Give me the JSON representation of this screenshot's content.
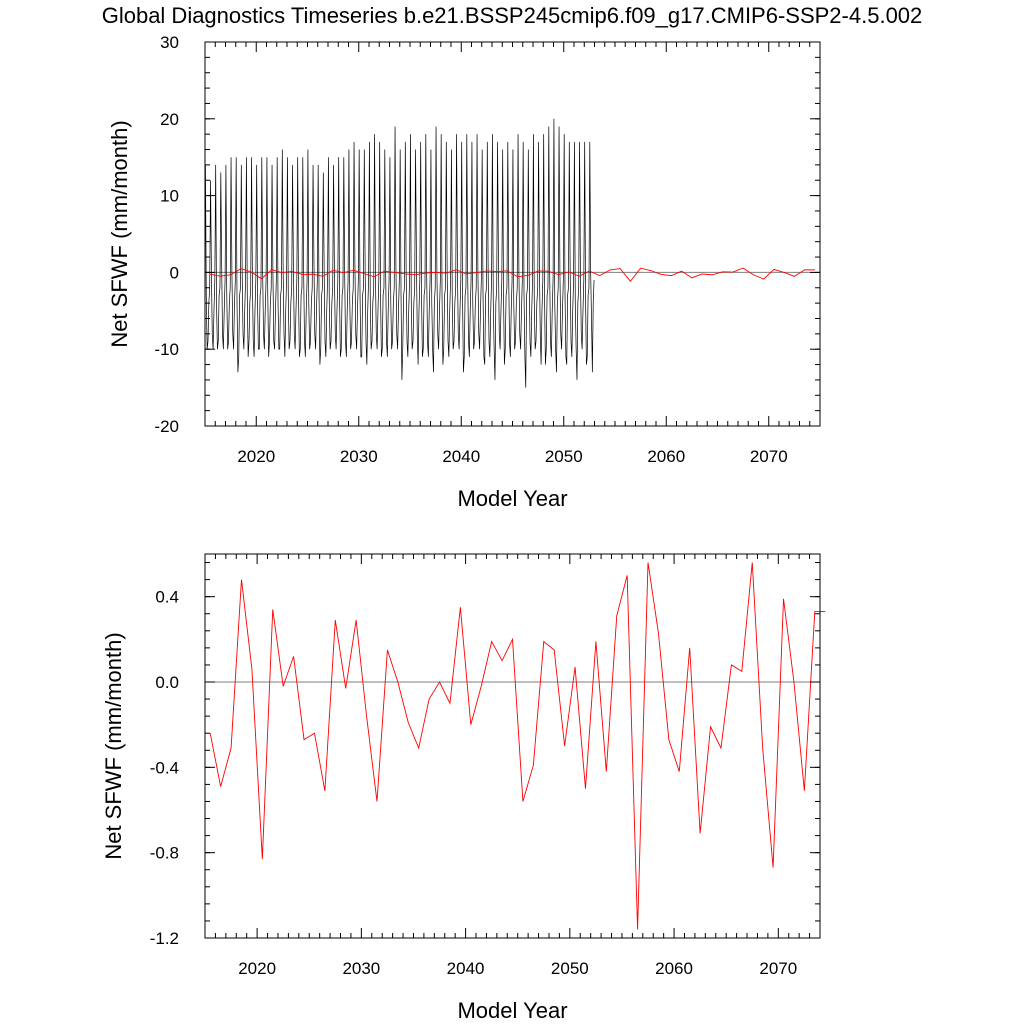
{
  "figure": {
    "title": "Global Diagnostics Timeseries b.e21.BSSP245cmip6.f09_g17.CMIP6-SSP2-4.5.002"
  },
  "chart_data": [
    {
      "type": "line",
      "xlabel": "Model Year",
      "ylabel": "Net SFWF (mm/month)",
      "xlim": [
        2015,
        2075
      ],
      "ylim": [
        -20,
        30
      ],
      "x_ticks": [
        2020,
        2030,
        2040,
        2050,
        2060,
        2070
      ],
      "y_ticks": [
        -20,
        -10,
        0,
        10,
        20,
        30
      ],
      "y_tick_labels": [
        "-20",
        "-10",
        "0",
        "10",
        "20",
        "30"
      ],
      "zero_line": 0,
      "series": [
        {
          "kind": "monthly",
          "color": "#000000",
          "start_year": 2015,
          "monthly_values": [
            14,
            -3,
            -10,
            -9,
            -4,
            -2,
            12,
            0,
            -8,
            -10,
            -5,
            -1,
            14,
            -4,
            -10,
            -9,
            -3,
            -2,
            13,
            1,
            -8,
            -10,
            -5,
            -1,
            14,
            -3,
            -10,
            -9,
            -4,
            -2,
            15,
            0,
            -8,
            -10,
            -4,
            -1,
            15,
            -4,
            -13,
            -11,
            -3,
            -2,
            14,
            0,
            -8,
            -10,
            -5,
            -1,
            15,
            -3,
            -11,
            -9,
            -4,
            -2,
            15,
            -1,
            -9,
            -11,
            -5,
            -1,
            14,
            -4,
            -10,
            -10,
            -3,
            -2,
            15,
            0,
            -8,
            -10,
            -5,
            -1,
            15,
            -3,
            -11,
            -9,
            -4,
            -2,
            14,
            0,
            -9,
            -10,
            -5,
            -1,
            15,
            -4,
            -10,
            -10,
            -3,
            -2,
            16,
            0,
            -8,
            -11,
            -5,
            -1,
            15,
            -3,
            -10,
            -9,
            -4,
            -2,
            14,
            1,
            -8,
            -10,
            -5,
            -1,
            15,
            -3,
            -11,
            -10,
            -3,
            -2,
            15,
            0,
            -9,
            -11,
            -5,
            -1,
            16,
            -4,
            -10,
            -9,
            -4,
            -2,
            14,
            2,
            -8,
            -10,
            -5,
            -1,
            14,
            -3,
            -12,
            -10,
            -3,
            -2,
            13,
            0,
            -9,
            -11,
            -5,
            -1,
            15,
            -4,
            -10,
            -9,
            -4,
            -2,
            14,
            0,
            -8,
            -10,
            -5,
            -1,
            15,
            -3,
            -11,
            -10,
            -3,
            -2,
            15,
            0,
            -9,
            -11,
            -5,
            -1,
            16,
            -4,
            -10,
            -9,
            -4,
            -2,
            17,
            1,
            -8,
            -10,
            -5,
            -1,
            16,
            -3,
            -11,
            -11,
            -3,
            -2,
            16,
            0,
            -9,
            -12,
            -5,
            -1,
            17,
            -4,
            -10,
            -9,
            -4,
            -2,
            18,
            0,
            -8,
            -10,
            -5,
            -1,
            17,
            -3,
            -11,
            -10,
            -3,
            -2,
            16,
            0,
            -9,
            -11,
            -5,
            -1,
            15,
            -4,
            -10,
            -9,
            -4,
            -2,
            19,
            1,
            -8,
            -10,
            -5,
            -1,
            16,
            -3,
            -14,
            -10,
            -3,
            -2,
            17,
            0,
            -9,
            -11,
            -5,
            -1,
            18,
            -4,
            -10,
            -9,
            -4,
            -2,
            16,
            2,
            -8,
            -12,
            -5,
            -1,
            17,
            -3,
            -11,
            -10,
            -3,
            -2,
            18,
            0,
            -9,
            -11,
            -5,
            -1,
            16,
            -4,
            -10,
            -13,
            -4,
            -2,
            19,
            0,
            -8,
            -10,
            -5,
            -1,
            18,
            -3,
            -12,
            -10,
            -3,
            -2,
            17,
            0,
            -9,
            -11,
            -5,
            -1,
            16,
            -4,
            -10,
            -9,
            -4,
            -2,
            18,
            1,
            -8,
            -10,
            -5,
            -1,
            17,
            -3,
            -13,
            -11,
            -3,
            -2,
            18,
            0,
            -9,
            -11,
            -5,
            -1,
            17,
            -4,
            -10,
            -9,
            -4,
            -2,
            18,
            0,
            -8,
            -10,
            -5,
            -1,
            16,
            -3,
            -11,
            -12,
            -3,
            -2,
            17,
            0,
            -9,
            -11,
            -5,
            -1,
            18,
            -4,
            -10,
            -14,
            -4,
            -2,
            17,
            2,
            -8,
            -10,
            -5,
            -1,
            16,
            -3,
            -12,
            -10,
            -3,
            -2,
            17,
            0,
            -9,
            -11,
            -5,
            -1,
            16,
            -4,
            -10,
            -9,
            -4,
            -2,
            18,
            0,
            -8,
            -10,
            -5,
            -1,
            17,
            -3,
            -11,
            -15,
            -3,
            -2,
            16,
            0,
            -9,
            -11,
            -5,
            -1,
            18,
            -4,
            -10,
            -9,
            -4,
            -2,
            17,
            1,
            -8,
            -12,
            -5,
            -1,
            18,
            -3,
            -12,
            -10,
            -3,
            -2,
            19,
            0,
            -9,
            -11,
            -5,
            -1,
            20,
            -4,
            -10,
            -13,
            -4,
            -2,
            19,
            0,
            -8,
            -10,
            -5,
            -1,
            18,
            -3,
            -11,
            -12,
            -3,
            -2,
            17,
            0,
            -9,
            -11,
            -5,
            -1,
            17,
            -4,
            -10,
            -14,
            -4,
            -2,
            17,
            0,
            -8,
            -10,
            -5,
            -1,
            17,
            -3,
            -12,
            -11,
            -3,
            -2,
            17,
            0,
            -6,
            -13,
            -4,
            -1
          ]
        },
        {
          "kind": "annual",
          "color": "#ff0000",
          "x": [
            2015.5,
            2016.5,
            2017.5,
            2018.5,
            2019.5,
            2020.5,
            2021.5,
            2022.5,
            2023.5,
            2024.5,
            2025.5,
            2026.5,
            2027.5,
            2028.5,
            2029.5,
            2030.5,
            2031.5,
            2032.5,
            2033.5,
            2034.5,
            2035.5,
            2036.5,
            2037.5,
            2038.5,
            2039.5,
            2040.5,
            2041.5,
            2042.5,
            2043.5,
            2044.5,
            2045.5,
            2046.5,
            2047.5,
            2048.5,
            2049.5,
            2050.5,
            2051.5,
            2052.5,
            2053.5,
            2054.5,
            2055.5,
            2056.5,
            2057.5,
            2058.5,
            2059.5,
            2060.5,
            2061.5,
            2062.5,
            2063.5,
            2064.5,
            2065.5,
            2066.5,
            2067.5,
            2068.5,
            2069.5,
            2070.5,
            2071.5,
            2072.5,
            2073.5,
            2074.5
          ],
          "values": [
            -0.24,
            -0.49,
            -0.31,
            0.48,
            0.06,
            -0.83,
            0.34,
            -0.02,
            0.12,
            -0.27,
            -0.24,
            -0.51,
            0.29,
            -0.03,
            0.29,
            -0.16,
            -0.56,
            0.15,
            0.0,
            -0.19,
            -0.31,
            -0.08,
            0.0,
            -0.1,
            0.35,
            -0.2,
            -0.02,
            0.19,
            0.1,
            0.2,
            -0.56,
            -0.39,
            0.19,
            0.15,
            -0.3,
            0.07,
            -0.5,
            0.19,
            -0.42,
            0.31,
            0.5,
            -1.16,
            0.56,
            0.23,
            -0.27,
            -0.42,
            0.16,
            -0.71,
            -0.21,
            -0.31,
            0.08,
            0.05,
            0.56,
            -0.31,
            -0.87,
            0.39,
            0.0,
            -0.51,
            0.33,
            0.33
          ]
        }
      ]
    },
    {
      "type": "line",
      "xlabel": "Model Year",
      "ylabel": "Net SFWF (mm/month)",
      "xlim": [
        2015,
        2074
      ],
      "ylim": [
        -1.2,
        0.6
      ],
      "x_ticks": [
        2020,
        2030,
        2040,
        2050,
        2060,
        2070
      ],
      "y_ticks": [
        -1.2,
        -0.8,
        -0.4,
        0.0,
        0.4
      ],
      "y_tick_labels": [
        "-1.2",
        "-0.8",
        "-0.4",
        "0.0",
        "0.4"
      ],
      "zero_line": 0,
      "series": [
        {
          "kind": "annual",
          "color": "#ff0000",
          "x": [
            2015.5,
            2016.5,
            2017.5,
            2018.5,
            2019.5,
            2020.5,
            2021.5,
            2022.5,
            2023.5,
            2024.5,
            2025.5,
            2026.5,
            2027.5,
            2028.5,
            2029.5,
            2030.5,
            2031.5,
            2032.5,
            2033.5,
            2034.5,
            2035.5,
            2036.5,
            2037.5,
            2038.5,
            2039.5,
            2040.5,
            2041.5,
            2042.5,
            2043.5,
            2044.5,
            2045.5,
            2046.5,
            2047.5,
            2048.5,
            2049.5,
            2050.5,
            2051.5,
            2052.5,
            2053.5,
            2054.5,
            2055.5,
            2056.5,
            2057.5,
            2058.5,
            2059.5,
            2060.5,
            2061.5,
            2062.5,
            2063.5,
            2064.5,
            2065.5,
            2066.5,
            2067.5,
            2068.5,
            2069.5,
            2070.5,
            2071.5,
            2072.5,
            2073.5,
            2074.5
          ],
          "values": [
            -0.24,
            -0.49,
            -0.31,
            0.48,
            0.06,
            -0.83,
            0.34,
            -0.02,
            0.12,
            -0.27,
            -0.24,
            -0.51,
            0.29,
            -0.03,
            0.29,
            -0.16,
            -0.56,
            0.15,
            0.0,
            -0.19,
            -0.31,
            -0.08,
            0.0,
            -0.1,
            0.35,
            -0.2,
            -0.02,
            0.19,
            0.1,
            0.2,
            -0.56,
            -0.39,
            0.19,
            0.15,
            -0.3,
            0.07,
            -0.5,
            0.19,
            -0.42,
            0.31,
            0.5,
            -1.16,
            0.56,
            0.23,
            -0.27,
            -0.42,
            0.16,
            -0.71,
            -0.21,
            -0.31,
            0.08,
            0.05,
            0.56,
            -0.31,
            -0.87,
            0.39,
            0.0,
            -0.51,
            0.33,
            0.33
          ]
        }
      ]
    }
  ]
}
